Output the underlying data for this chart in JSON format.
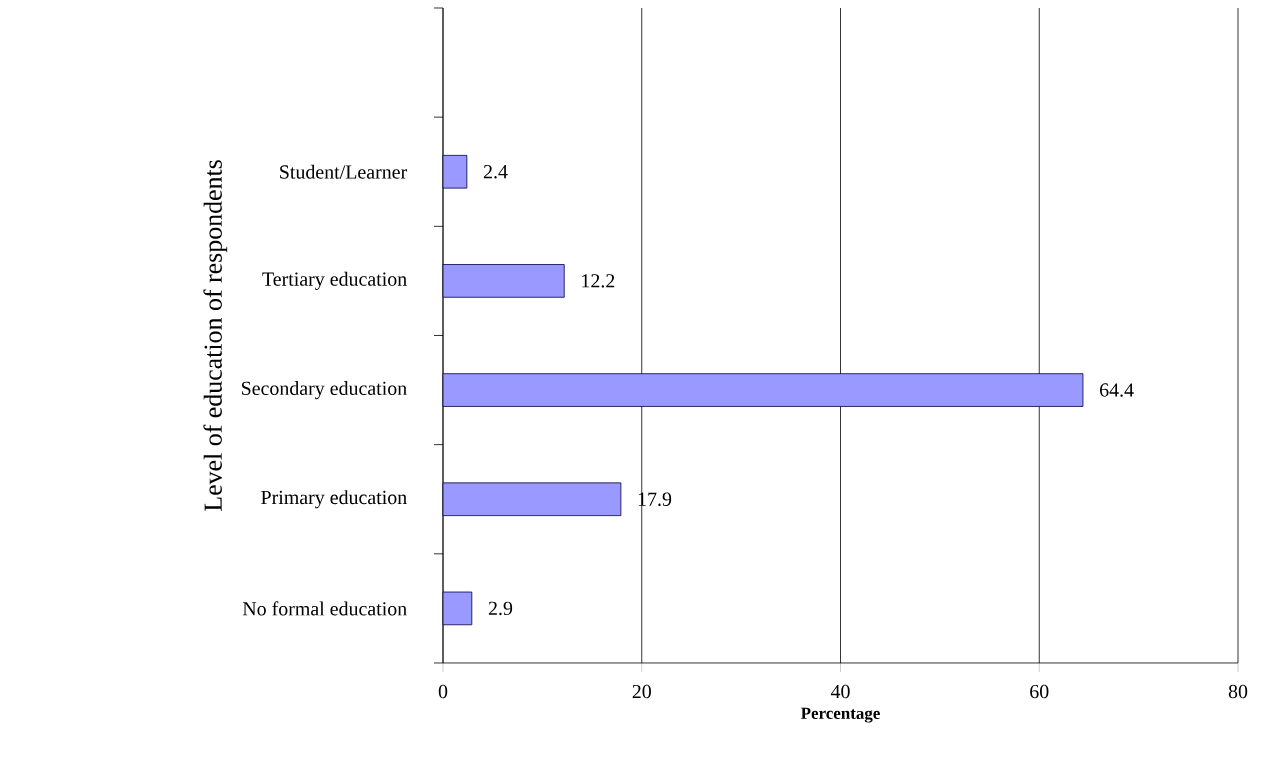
{
  "chart_data": {
    "type": "bar",
    "orientation": "horizontal",
    "ylabel": "Level of education of respondents",
    "xlabel": "Percentage",
    "categories": [
      null,
      "Student/Learner",
      "Tertiary education",
      "Secondary education",
      "Primary education",
      "No formal education"
    ],
    "values": [
      null,
      2.4,
      12.2,
      64.4,
      17.9,
      2.9
    ],
    "color": "#9999ff",
    "xlim": [
      0,
      80
    ],
    "xticks": [
      0,
      20,
      40,
      60,
      80
    ],
    "grid": "x",
    "data_labels": true
  }
}
